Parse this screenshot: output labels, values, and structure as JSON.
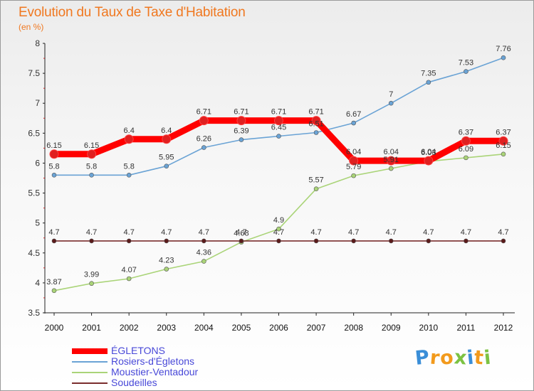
{
  "header": {
    "title": "Evolution du Taux de Taxe d'Habitation",
    "subtitle": "(en %)"
  },
  "logo": {
    "letters": [
      "P",
      "r",
      "o",
      "x",
      "i",
      "t",
      "i"
    ],
    "colors": [
      "#3a8ed8",
      "#f29a1c",
      "#f29a1c",
      "#7cc242",
      "#3a8ed8",
      "#f29a1c",
      "#7cc242"
    ]
  },
  "chart_data": {
    "type": "line",
    "title": "Evolution du Taux de Taxe d'Habitation",
    "subtitle": "(en %)",
    "x": [
      "2000",
      "2001",
      "2002",
      "2003",
      "2004",
      "2005",
      "2006",
      "2007",
      "2008",
      "2009",
      "2010",
      "2011",
      "2012"
    ],
    "ylim": [
      3.5,
      8
    ],
    "yticks": [
      "3.5",
      "4",
      "4.5",
      "5",
      "5.5",
      "6",
      "6.5",
      "7",
      "7.5",
      "8"
    ],
    "grid": false,
    "legend_position": "bottom-left",
    "series": [
      {
        "name": "ÉGLETONS",
        "color": "#ff0000",
        "emphasis": "thick",
        "values": [
          6.15,
          6.15,
          6.4,
          6.4,
          6.71,
          6.71,
          6.71,
          6.71,
          6.04,
          6.04,
          6.04,
          6.37,
          6.37
        ],
        "labels": [
          "6.15",
          "6.15",
          "6.4",
          "6.4",
          "6.71",
          "6.71",
          "6.71",
          "6.71",
          "6.04",
          "6.04",
          "6.04",
          "6.37",
          "6.37"
        ]
      },
      {
        "name": "Rosiers-d'Égletons",
        "color": "#6aa3d5",
        "emphasis": "thin",
        "values": [
          5.8,
          5.8,
          5.8,
          5.95,
          6.26,
          6.39,
          6.45,
          6.51,
          6.67,
          7.0,
          7.35,
          7.53,
          7.76
        ],
        "labels": [
          "5.8",
          "5.8",
          "5.8",
          "5.95",
          "6.26",
          "6.39",
          "6.45",
          "6.51",
          "6.67",
          "7",
          "7.35",
          "7.53",
          "7.76"
        ]
      },
      {
        "name": "Moustier-Ventadour",
        "color": "#aad478",
        "emphasis": "thin",
        "values": [
          3.87,
          3.99,
          4.07,
          4.23,
          4.36,
          4.68,
          4.9,
          5.57,
          5.79,
          5.91,
          6.03,
          6.09,
          6.15
        ],
        "labels": [
          "3.87",
          "3.99",
          "4.07",
          "4.23",
          "4.36",
          "4.68",
          "4.9",
          "5.57",
          "5.79",
          "5.91",
          "6.03",
          "6.09",
          "6.15"
        ]
      },
      {
        "name": "Soudeilles",
        "color": "#7a2e2e",
        "emphasis": "thin",
        "values": [
          4.7,
          4.7,
          4.7,
          4.7,
          4.7,
          4.7,
          4.7,
          4.7,
          4.7,
          4.7,
          4.7,
          4.7,
          4.7
        ],
        "labels": [
          "4.7",
          "4.7",
          "4.7",
          "4.7",
          "4.7",
          "4.7",
          "4.7",
          "4.7",
          "4.7",
          "4.7",
          "4.7",
          "4.7",
          "4.7"
        ]
      }
    ]
  }
}
